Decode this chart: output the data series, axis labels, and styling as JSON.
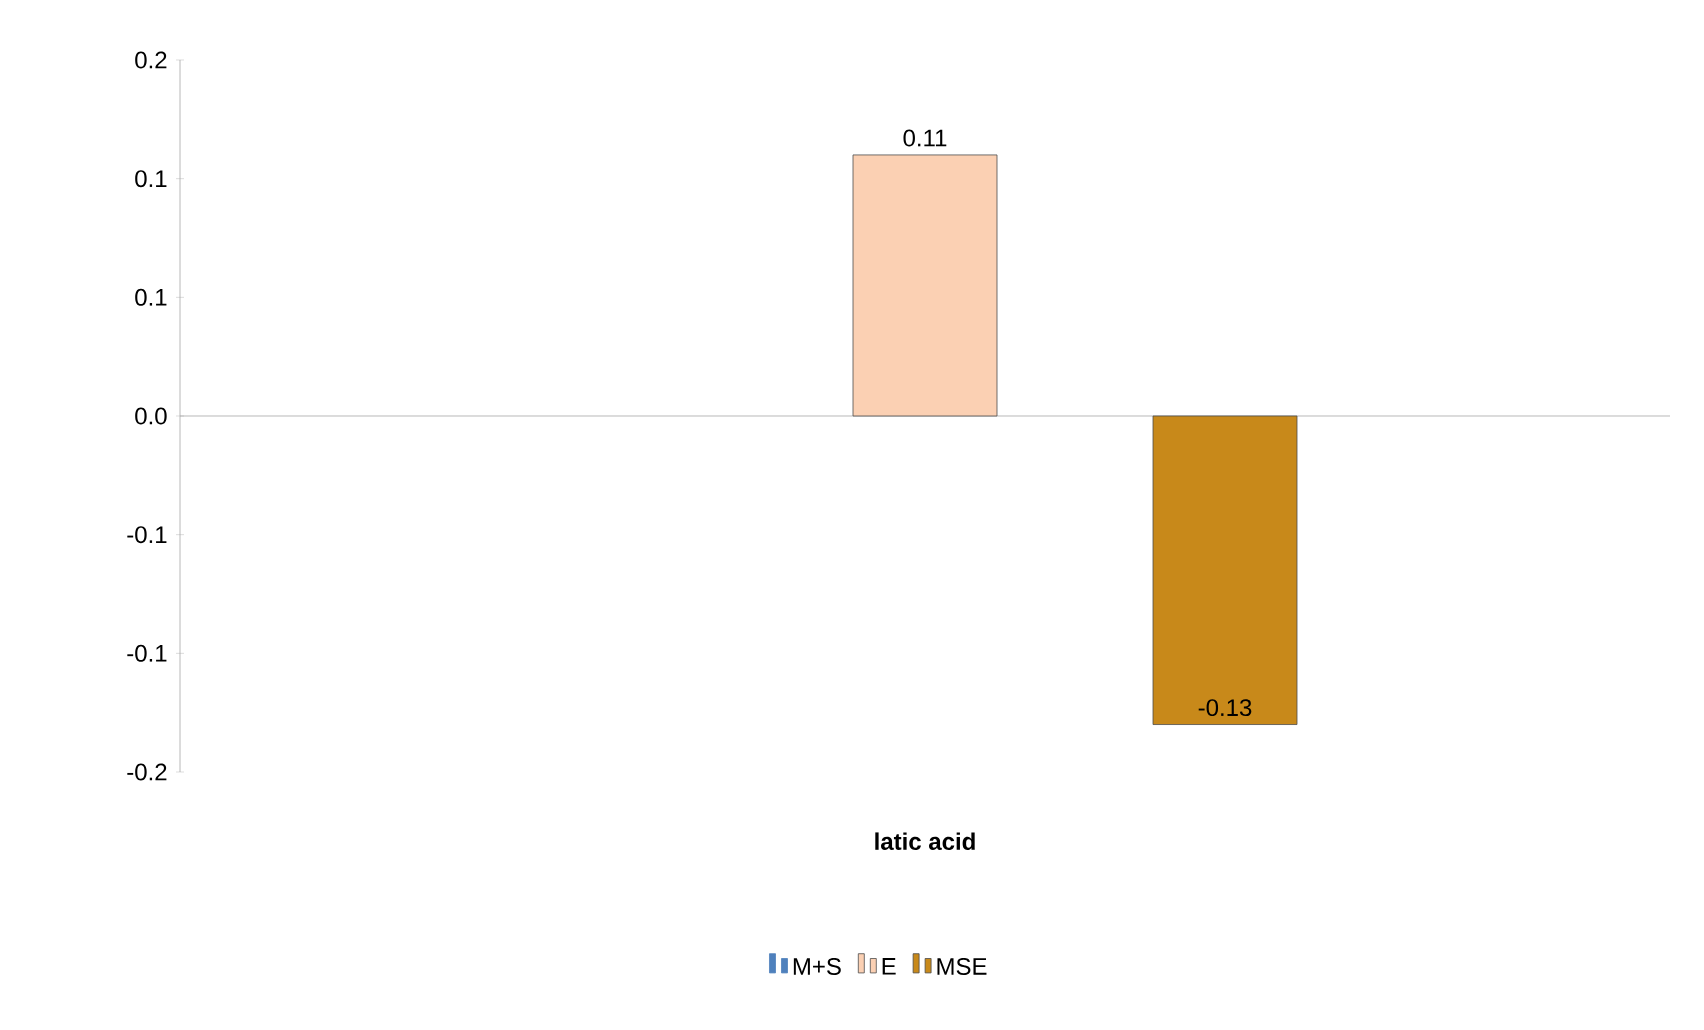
{
  "chart_data": {
    "type": "bar",
    "categories": [
      "latic acid"
    ],
    "series": [
      {
        "name": "M+S",
        "color": "#4f81bd",
        "values": [
          null
        ]
      },
      {
        "name": "E",
        "color": "#fbd0b3",
        "values": [
          0.11
        ],
        "value_labels": [
          "0.11"
        ]
      },
      {
        "name": "MSE",
        "color": "#c8891a",
        "values": [
          -0.13
        ],
        "value_labels": [
          "-0.13"
        ]
      }
    ],
    "ylim": [
      -0.15,
      0.15
    ],
    "yticks": [
      {
        "value": -0.15,
        "label": "-0.2"
      },
      {
        "value": -0.1,
        "label": "-0.1"
      },
      {
        "value": -0.05,
        "label": "-0.1"
      },
      {
        "value": 0,
        "label": "0.0"
      },
      {
        "value": 0.05,
        "label": "0.1"
      },
      0.1,
      {
        "value": 0.15,
        "label": "0.2"
      }
    ],
    "legend": "bottom"
  }
}
